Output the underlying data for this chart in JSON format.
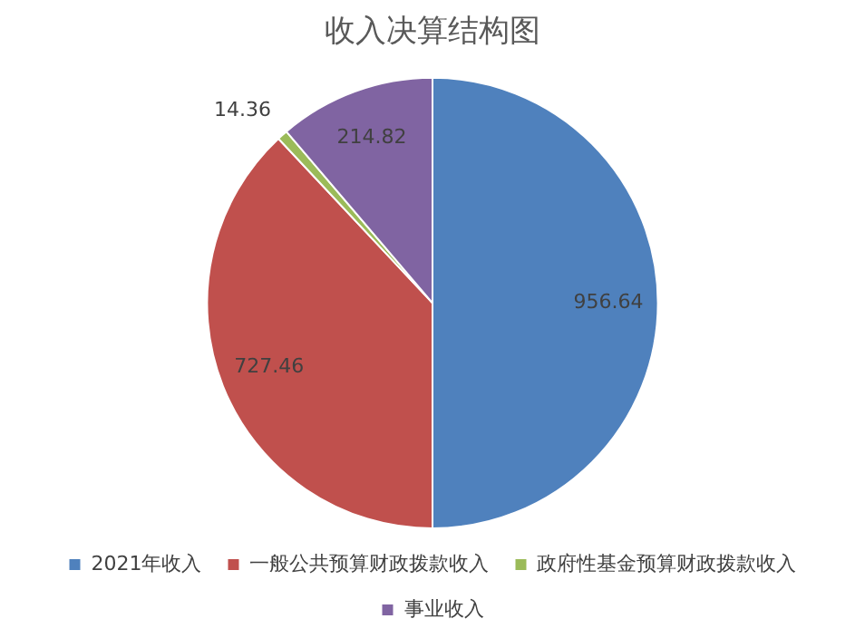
{
  "chart_data": {
    "type": "pie",
    "title": "收入决算结构图",
    "categories": [
      "2021年收入",
      "一般公共预算财政拨款收入",
      "政府性基金预算财政拨款收入",
      "事业收入"
    ],
    "values": [
      956.64,
      727.46,
      14.36,
      214.82
    ],
    "colors": [
      "#4f81bd",
      "#c0504d",
      "#9bbb59",
      "#8064a2"
    ],
    "data_labels": true,
    "legend": "bottom"
  }
}
